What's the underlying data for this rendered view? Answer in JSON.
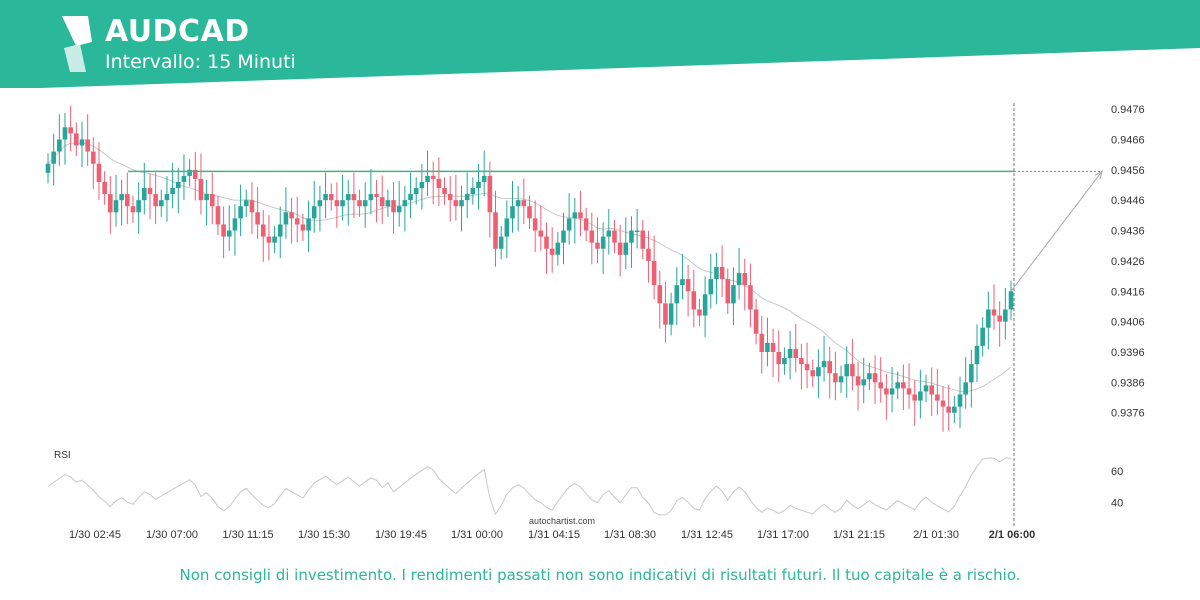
{
  "header": {
    "title": "AUDCAD",
    "subtitle": "Intervallo: 15 Minuti",
    "banner_color": "#2bb79a"
  },
  "footer": {
    "disclaimer": "Non consigli di investimento. I rendimenti passati non sono indicativi di risultati futuri. Il tuo capitale è a rischio.",
    "disclaimer_color": "#2bb79a"
  },
  "chart_data": {
    "type": "candlestick",
    "symbol": "AUDCAD",
    "interval": "15 Minuti",
    "watermark": "autochartist.com",
    "colors": {
      "up": "#26a69a",
      "down": "#ef5f73",
      "resistance": "#4caf7d",
      "ma": "#c8c8c8",
      "rsi": "#c8c8c8"
    },
    "y_ticks": [
      "0.9476",
      "0.9466",
      "0.9456",
      "0.9446",
      "0.9436",
      "0.9426",
      "0.9416",
      "0.9406",
      "0.9396",
      "0.9386",
      "0.9376"
    ],
    "ylim": [
      0.9368,
      0.9478
    ],
    "x_ticks": [
      "1/30 02:45",
      "1/30 07:00",
      "1/30 11:15",
      "1/30 15:30",
      "1/30 19:45",
      "1/31 00:00",
      "1/31 04:15",
      "1/31 08:30",
      "1/31 12:45",
      "1/31 17:00",
      "1/31 21:15",
      "2/1 01:30",
      "2/1 06:00"
    ],
    "resistance_level": 0.94555,
    "projection_target": 0.94555,
    "close_series": [
      0.9458,
      0.9462,
      0.9466,
      0.947,
      0.9468,
      0.9464,
      0.9466,
      0.9462,
      0.9458,
      0.9452,
      0.9448,
      0.9442,
      0.9446,
      0.9448,
      0.9444,
      0.9442,
      0.9446,
      0.945,
      0.9448,
      0.9444,
      0.9446,
      0.9448,
      0.945,
      0.9452,
      0.9454,
      0.9456,
      0.9453,
      0.9446,
      0.9448,
      0.9444,
      0.9438,
      0.9434,
      0.9436,
      0.944,
      0.9444,
      0.9446,
      0.9442,
      0.9438,
      0.9434,
      0.9432,
      0.9434,
      0.9438,
      0.9442,
      0.944,
      0.9438,
      0.9436,
      0.944,
      0.9444,
      0.9446,
      0.9448,
      0.9446,
      0.9444,
      0.9446,
      0.9448,
      0.9446,
      0.9444,
      0.9446,
      0.9448,
      0.9447,
      0.9444,
      0.9446,
      0.9442,
      0.9444,
      0.9446,
      0.9448,
      0.945,
      0.9452,
      0.9454,
      0.9453,
      0.945,
      0.9448,
      0.9446,
      0.9444,
      0.9446,
      0.9448,
      0.945,
      0.9452,
      0.9454,
      0.9442,
      0.943,
      0.9434,
      0.944,
      0.9444,
      0.9446,
      0.9444,
      0.944,
      0.9436,
      0.9434,
      0.943,
      0.9428,
      0.9432,
      0.9436,
      0.944,
      0.9442,
      0.944,
      0.9436,
      0.9432,
      0.943,
      0.9434,
      0.9436,
      0.9432,
      0.9428,
      0.9432,
      0.9436,
      0.9436,
      0.943,
      0.9426,
      0.9418,
      0.9412,
      0.9405,
      0.9412,
      0.9418,
      0.942,
      0.9416,
      0.941,
      0.9408,
      0.9415,
      0.942,
      0.9424,
      0.942,
      0.9412,
      0.9418,
      0.9422,
      0.9418,
      0.941,
      0.9402,
      0.9396,
      0.9399,
      0.9396,
      0.9392,
      0.9394,
      0.9397,
      0.9394,
      0.9392,
      0.939,
      0.9388,
      0.9391,
      0.9393,
      0.9389,
      0.9386,
      0.9388,
      0.9392,
      0.9388,
      0.9385,
      0.9387,
      0.9389,
      0.9386,
      0.9384,
      0.9382,
      0.9384,
      0.9386,
      0.9384,
      0.9382,
      0.938,
      0.9383,
      0.9385,
      0.9382,
      0.938,
      0.9378,
      0.9376,
      0.9378,
      0.9382,
      0.9386,
      0.9392,
      0.9398,
      0.9404,
      0.941,
      0.9408,
      0.9406,
      0.941,
      0.9416
    ]
  }
}
